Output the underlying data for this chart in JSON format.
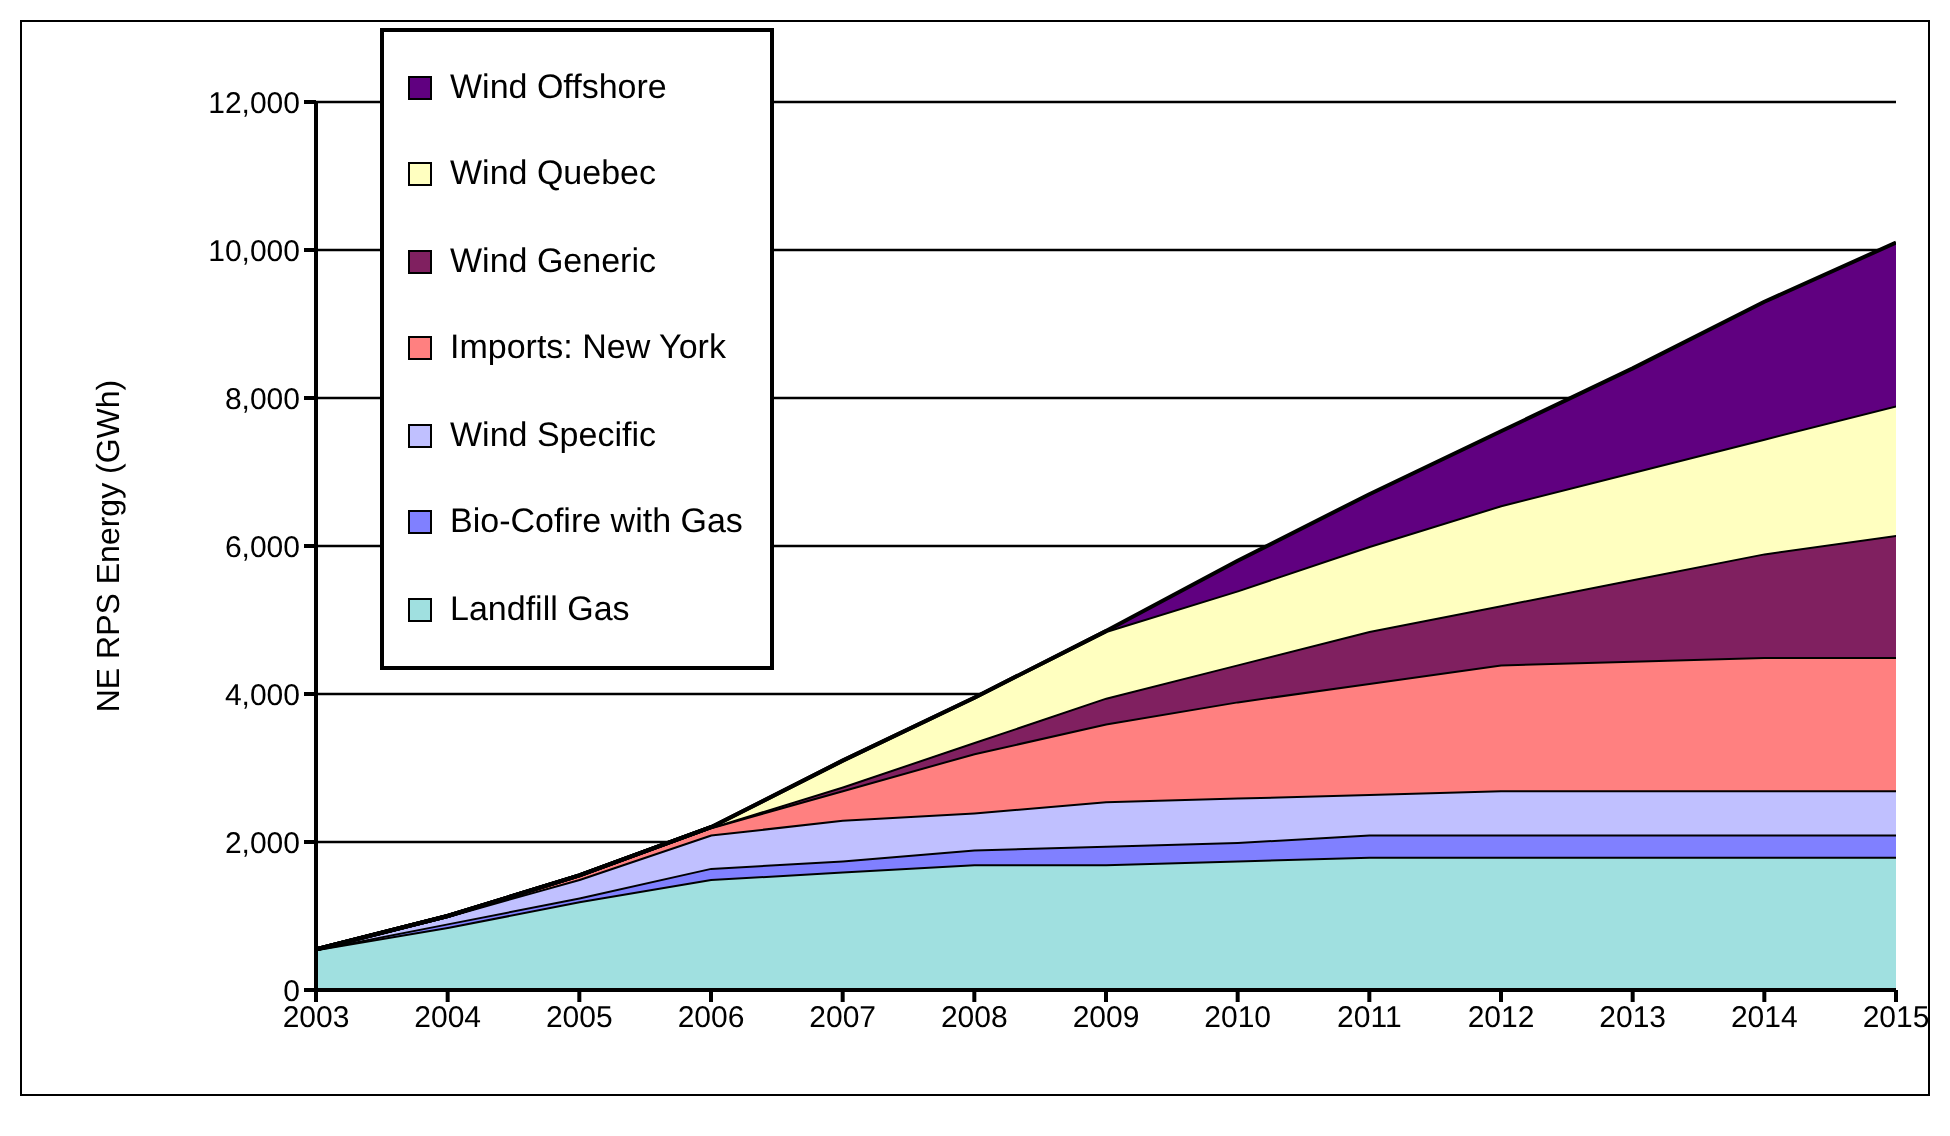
{
  "chart_data": {
    "type": "area",
    "stacked": true,
    "ylabel": "NE RPS Energy (GWh)",
    "x": [
      2003,
      2004,
      2005,
      2006,
      2007,
      2008,
      2009,
      2010,
      2011,
      2012,
      2013,
      2014,
      2015
    ],
    "xlim": [
      2003,
      2015
    ],
    "xticks": [
      2003,
      2004,
      2005,
      2006,
      2007,
      2008,
      2009,
      2010,
      2011,
      2012,
      2013,
      2014,
      2015
    ],
    "ylim": [
      0,
      12000
    ],
    "yticks": [
      0,
      {
        "value": 2000,
        "label": "2,000"
      },
      {
        "value": 4000,
        "label": "4,000"
      },
      {
        "value": 6000,
        "label": "6,000"
      },
      {
        "value": 8000,
        "label": "8,000"
      },
      {
        "value": 10000,
        "label": "10,000"
      },
      {
        "value": 12000,
        "label": "12,000"
      }
    ],
    "grid": "y",
    "legend": "top left",
    "series": [
      {
        "name": "Landfill Gas",
        "color": "#a0e0e0",
        "values": [
          550,
          850,
          1200,
          1500,
          1600,
          1700,
          1700,
          1750,
          1800,
          1800,
          1800,
          1800,
          1800
        ]
      },
      {
        "name": "Bio-Cofire with Gas",
        "color": "#8080ff",
        "values": [
          0,
          50,
          50,
          150,
          150,
          200,
          250,
          250,
          300,
          300,
          300,
          300,
          300
        ]
      },
      {
        "name": "Wind Specific",
        "color": "#c0c0ff",
        "values": [
          0,
          100,
          250,
          450,
          550,
          500,
          600,
          600,
          550,
          600,
          600,
          600,
          600
        ]
      },
      {
        "name": "Imports: New York",
        "color": "#ff8080",
        "values": [
          0,
          0,
          50,
          100,
          400,
          800,
          1050,
          1300,
          1500,
          1700,
          1750,
          1800,
          1800
        ]
      },
      {
        "name": "Wind Generic",
        "color": "#802060",
        "values": [
          0,
          0,
          0,
          0,
          50,
          150,
          350,
          500,
          700,
          800,
          1100,
          1400,
          1650
        ]
      },
      {
        "name": "Wind Quebec",
        "color": "#ffffc0",
        "values": [
          0,
          0,
          0,
          0,
          350,
          600,
          900,
          1000,
          1150,
          1350,
          1450,
          1550,
          1750
        ]
      },
      {
        "name": "Wind Offshore",
        "color": "#600080",
        "values": [
          0,
          0,
          0,
          0,
          0,
          0,
          0,
          400,
          700,
          1000,
          1400,
          1850,
          2200
        ]
      }
    ]
  }
}
